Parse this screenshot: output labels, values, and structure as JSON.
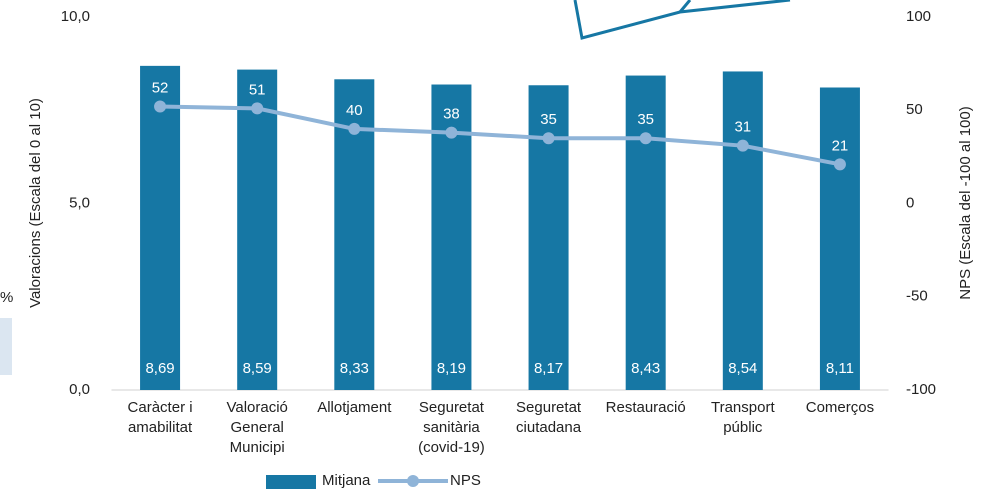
{
  "chart_data": {
    "type": "bar",
    "categories": [
      "Caràcter i amabilitat",
      "Valoració General Municipi",
      "Allotjament",
      "Seguretat sanitària (covid-19)",
      "Seguretat ciutadana",
      "Restauració",
      "Transport públic",
      "Comerços"
    ],
    "series": [
      {
        "name": "Mitjana",
        "type": "bar",
        "color": "#1677a4",
        "values": [
          8.69,
          8.59,
          8.33,
          8.19,
          8.17,
          8.43,
          8.54,
          8.11
        ],
        "value_labels": [
          "8,69",
          "8,59",
          "8,33",
          "8,19",
          "8,17",
          "8,43",
          "8,54",
          "8,11"
        ]
      },
      {
        "name": "NPS",
        "type": "line",
        "axis": "y2",
        "color": "#8fb4d8",
        "values": [
          52,
          51,
          40,
          38,
          35,
          35,
          31,
          21
        ]
      }
    ],
    "ylim": [
      0,
      10
    ],
    "yticks": [
      {
        "value": 0,
        "label": "0,0"
      },
      {
        "value": 5,
        "label": "5,0"
      },
      {
        "value": 10,
        "label": "10,0"
      }
    ],
    "y2lim": [
      -100,
      100
    ],
    "y2ticks": [
      -100,
      -50,
      0,
      50,
      100
    ],
    "ylabel": "Valoracions (Escala  del 0 al 10)",
    "y2label": "NPS (Escala  del -100 al 100)",
    "legend": "bottom",
    "side_fragment": "%"
  }
}
